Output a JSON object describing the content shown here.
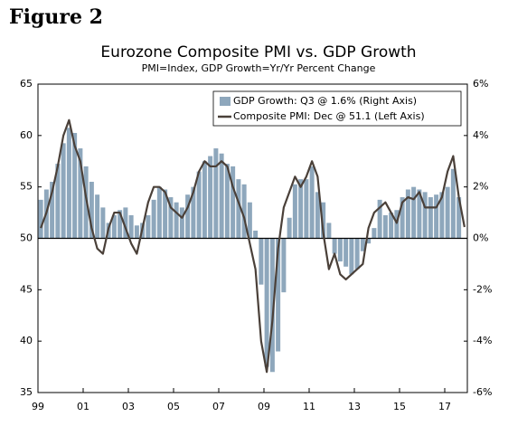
{
  "chart_data": {
    "type": "bar-line",
    "heading": "Figure 2",
    "title": "Eurozone Composite PMI vs. GDP Growth",
    "subtitle": "PMI=Index,  GDP Growth=Yr/Yr Percent Change",
    "x": [
      1999.125,
      1999.375,
      1999.625,
      1999.875,
      2000.125,
      2000.375,
      2000.625,
      2000.875,
      2001.125,
      2001.375,
      2001.625,
      2001.875,
      2002.125,
      2002.375,
      2002.625,
      2002.875,
      2003.125,
      2003.375,
      2003.625,
      2003.875,
      2004.125,
      2004.375,
      2004.625,
      2004.875,
      2005.125,
      2005.375,
      2005.625,
      2005.875,
      2006.125,
      2006.375,
      2006.625,
      2006.875,
      2007.125,
      2007.375,
      2007.625,
      2007.875,
      2008.125,
      2008.375,
      2008.625,
      2008.875,
      2009.125,
      2009.375,
      2009.625,
      2009.875,
      2010.125,
      2010.375,
      2010.625,
      2010.875,
      2011.125,
      2011.375,
      2011.625,
      2011.875,
      2012.125,
      2012.375,
      2012.625,
      2012.875,
      2013.125,
      2013.375,
      2013.625,
      2013.875,
      2014.125,
      2014.375,
      2014.625,
      2014.875,
      2015.125,
      2015.375,
      2015.625,
      2015.875,
      2016.125,
      2016.375,
      2016.625,
      2016.875,
      2017.125,
      2017.375,
      2017.625,
      2017.875
    ],
    "series": [
      {
        "name": "GDP Growth: Q3 @ 1.6% (Right Axis)",
        "color": "#8ea7bc",
        "axis": "y2",
        "values": [
          1.5,
          1.9,
          2.2,
          2.9,
          3.7,
          4.3,
          4.1,
          3.5,
          2.8,
          2.2,
          1.7,
          1.2,
          0.6,
          0.9,
          1.1,
          1.2,
          0.9,
          0.5,
          0.6,
          0.9,
          1.5,
          2.0,
          1.9,
          1.6,
          1.4,
          1.2,
          1.7,
          2.0,
          2.6,
          3.0,
          3.2,
          3.5,
          3.3,
          2.9,
          2.8,
          2.3,
          2.1,
          1.4,
          0.3,
          -1.8,
          -5.0,
          -5.2,
          -4.4,
          -2.1,
          0.8,
          2.1,
          2.3,
          2.3,
          2.8,
          1.8,
          1.4,
          0.6,
          -0.6,
          -0.9,
          -1.1,
          -1.4,
          -1.2,
          -0.5,
          -0.2,
          0.4,
          1.5,
          0.9,
          1.0,
          1.1,
          1.6,
          1.9,
          2.0,
          1.9,
          1.8,
          1.6,
          1.7,
          1.8,
          2.0,
          2.7,
          1.6,
          null
        ]
      },
      {
        "name": "Composite PMI: Dec @ 51.1 (Left Axis)",
        "color": "#4a4039",
        "values": [
          51,
          52.5,
          54.5,
          57,
          60,
          61.5,
          59,
          57.5,
          54,
          51,
          49,
          48.5,
          51,
          52.5,
          52.5,
          51,
          49.5,
          48.5,
          51,
          53.5,
          55,
          55,
          54.5,
          53,
          52.5,
          52,
          53,
          54.5,
          56.5,
          57.5,
          57,
          57,
          57.5,
          57,
          55,
          53.5,
          52,
          49.5,
          47,
          40,
          37,
          42,
          49,
          53,
          54.5,
          56,
          55,
          56,
          57.5,
          56,
          50.5,
          47,
          48.5,
          46.5,
          46,
          46.5,
          47,
          47.5,
          51,
          52.5,
          53,
          53.5,
          52.5,
          51.5,
          53.5,
          54,
          53.8,
          54.5,
          53,
          53,
          53,
          54,
          56.5,
          58,
          54,
          51.1
        ]
      }
    ],
    "xlim": [
      1999,
      2018
    ],
    "xticks": [
      {
        "value": 1999,
        "label": "99"
      },
      {
        "value": 2001,
        "label": "01"
      },
      {
        "value": 2003,
        "label": "03"
      },
      {
        "value": 2005,
        "label": "05"
      },
      {
        "value": 2007,
        "label": "07"
      },
      {
        "value": 2009,
        "label": "09"
      },
      {
        "value": 2011,
        "label": "11"
      },
      {
        "value": 2013,
        "label": "13"
      },
      {
        "value": 2015,
        "label": "15"
      },
      {
        "value": 2017,
        "label": "17"
      }
    ],
    "ylim": [
      35,
      65
    ],
    "yticks": [
      35,
      40,
      45,
      50,
      55,
      60,
      65
    ],
    "y2lim": [
      -6,
      6
    ],
    "y2ticks": [
      {
        "value": -6,
        "label": "-6%"
      },
      {
        "value": -4,
        "label": "-4%"
      },
      {
        "value": -2,
        "label": "-2%"
      },
      {
        "value": 0,
        "label": "0%"
      },
      {
        "value": 2,
        "label": "2%"
      },
      {
        "value": 4,
        "label": "4%"
      },
      {
        "value": 6,
        "label": "6%"
      }
    ],
    "legend": "upper right"
  }
}
